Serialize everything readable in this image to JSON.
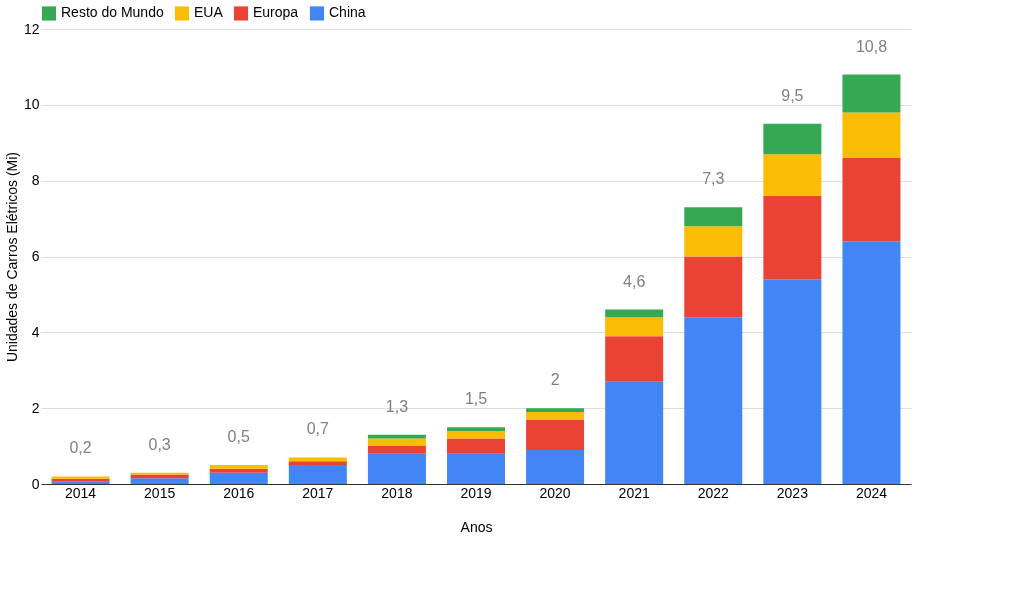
{
  "chart_data": {
    "type": "bar",
    "stacked": true,
    "xlabel": "Anos",
    "ylabel": "Unidades de Carros Elétricos (Mi)",
    "categories": [
      "2014",
      "2015",
      "2016",
      "2017",
      "2018",
      "2019",
      "2020",
      "2021",
      "2022",
      "2023",
      "2024"
    ],
    "series": [
      {
        "name": "China",
        "color": "#4285f4",
        "values": [
          0.06,
          0.15,
          0.3,
          0.5,
          0.8,
          0.8,
          0.9,
          2.7,
          4.4,
          5.4,
          6.4
        ]
      },
      {
        "name": "Europa",
        "color": "#ea4335",
        "values": [
          0.08,
          0.1,
          0.1,
          0.1,
          0.2,
          0.4,
          0.8,
          1.2,
          1.6,
          2.2,
          2.2
        ]
      },
      {
        "name": "EUA",
        "color": "#fbbc04",
        "values": [
          0.06,
          0.05,
          0.1,
          0.1,
          0.2,
          0.2,
          0.2,
          0.5,
          0.8,
          1.1,
          1.2
        ]
      },
      {
        "name": "Resto do Mundo",
        "color": "#34a853",
        "values": [
          0,
          0,
          0,
          0,
          0.1,
          0.1,
          0.1,
          0.2,
          0.5,
          0.8,
          1.0
        ]
      }
    ],
    "totals": [
      "0,2",
      "0,3",
      "0,5",
      "0,7",
      "1,3",
      "1,5",
      "2",
      "4,6",
      "7,3",
      "9,5",
      "10,8"
    ],
    "ylim": [
      0,
      12
    ],
    "yticks": [
      0,
      2,
      4,
      6,
      8,
      10,
      12
    ],
    "grid": "y",
    "legend": "top"
  }
}
